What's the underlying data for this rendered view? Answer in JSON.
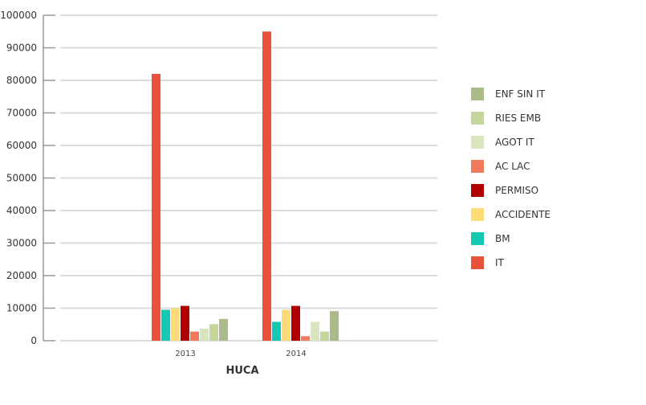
{
  "chart_data": {
    "type": "bar",
    "title": "",
    "xlabel": "HUCA",
    "ylabel": "",
    "ylim": [
      0,
      100000
    ],
    "yticks": [
      "0",
      "10000",
      "20000",
      "30000",
      "40000",
      "50000",
      "60000",
      "70000",
      "80000",
      "90000",
      "100000"
    ],
    "grid": true,
    "legend_position": "right",
    "categories": [
      "2013",
      "2014"
    ],
    "series": [
      {
        "name": "IT",
        "color": "#e8513a",
        "values": [
          82000,
          95000
        ]
      },
      {
        "name": "BM",
        "color": "#14c8b4",
        "values": [
          9500,
          5800
        ]
      },
      {
        "name": "ACCIDENTE",
        "color": "#fddb76",
        "values": [
          10000,
          9500
        ]
      },
      {
        "name": "PERMISO",
        "color": "#b10000",
        "values": [
          10700,
          10700
        ]
      },
      {
        "name": "AC LAC",
        "color": "#f07a5e",
        "values": [
          2800,
          1400
        ]
      },
      {
        "name": "AGOT IT",
        "color": "#d9e5bd",
        "values": [
          3700,
          5800
        ]
      },
      {
        "name": "RIES EMB",
        "color": "#c4d69b",
        "values": [
          5100,
          2800
        ]
      },
      {
        "name": "ENF SIN IT",
        "color": "#abba89",
        "values": [
          6700,
          9100
        ]
      }
    ]
  }
}
